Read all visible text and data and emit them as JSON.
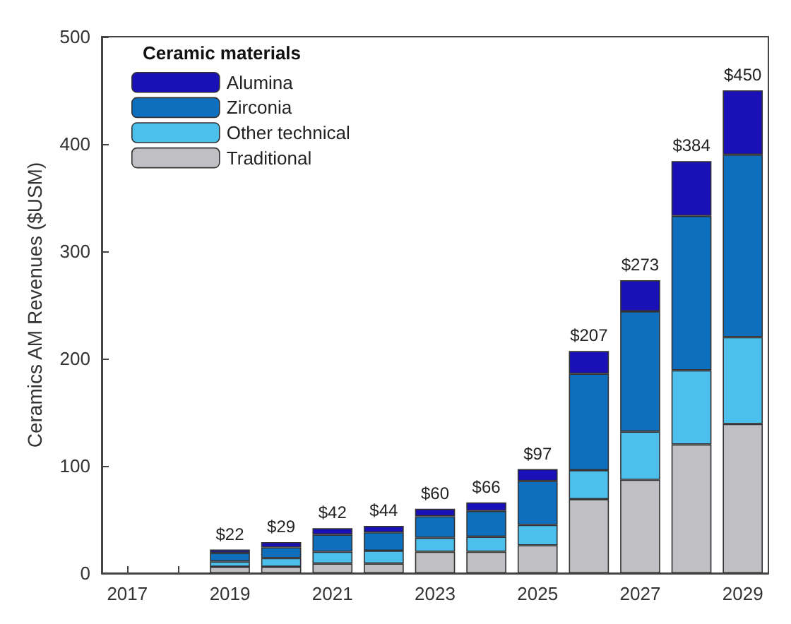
{
  "chart_data": {
    "type": "bar",
    "stacked": true,
    "ylabel": "Ceramics AM Revenues ($USM)",
    "legend_title": "Ceramic materials",
    "legend": "top left",
    "grid": false,
    "categories": [
      "2017",
      null,
      "2019",
      null,
      "2021",
      null,
      "2023",
      null,
      "2025",
      null,
      "2027",
      null,
      "2029"
    ],
    "ylim": [
      0,
      500
    ],
    "yticks": [
      0,
      100,
      200,
      300,
      400,
      500
    ],
    "series": [
      {
        "name": "Traditional",
        "color": "#c0c0c4",
        "values": [
          null,
          null,
          6,
          6,
          9,
          9,
          20,
          20,
          26,
          69,
          87,
          120,
          139
        ]
      },
      {
        "name": "Other technical",
        "color": "#4cbfec",
        "values": [
          null,
          null,
          5,
          8,
          11,
          12,
          13,
          14,
          19,
          27,
          45,
          69,
          81
        ]
      },
      {
        "name": "Zirconia",
        "color": "#0f6fbf",
        "values": [
          null,
          null,
          8,
          10,
          16,
          17,
          20,
          24,
          41,
          90,
          112,
          144,
          170
        ]
      },
      {
        "name": "Alumina",
        "color": "#1a10b8",
        "values": [
          null,
          null,
          3,
          5,
          6,
          6,
          7,
          8,
          11,
          21,
          29,
          51,
          60
        ]
      }
    ],
    "totals": [
      null,
      null,
      "$22",
      "$29",
      "$42",
      "$44",
      "$60",
      "$66",
      "$97",
      "$207",
      "$273",
      "$384",
      "$450"
    ]
  }
}
